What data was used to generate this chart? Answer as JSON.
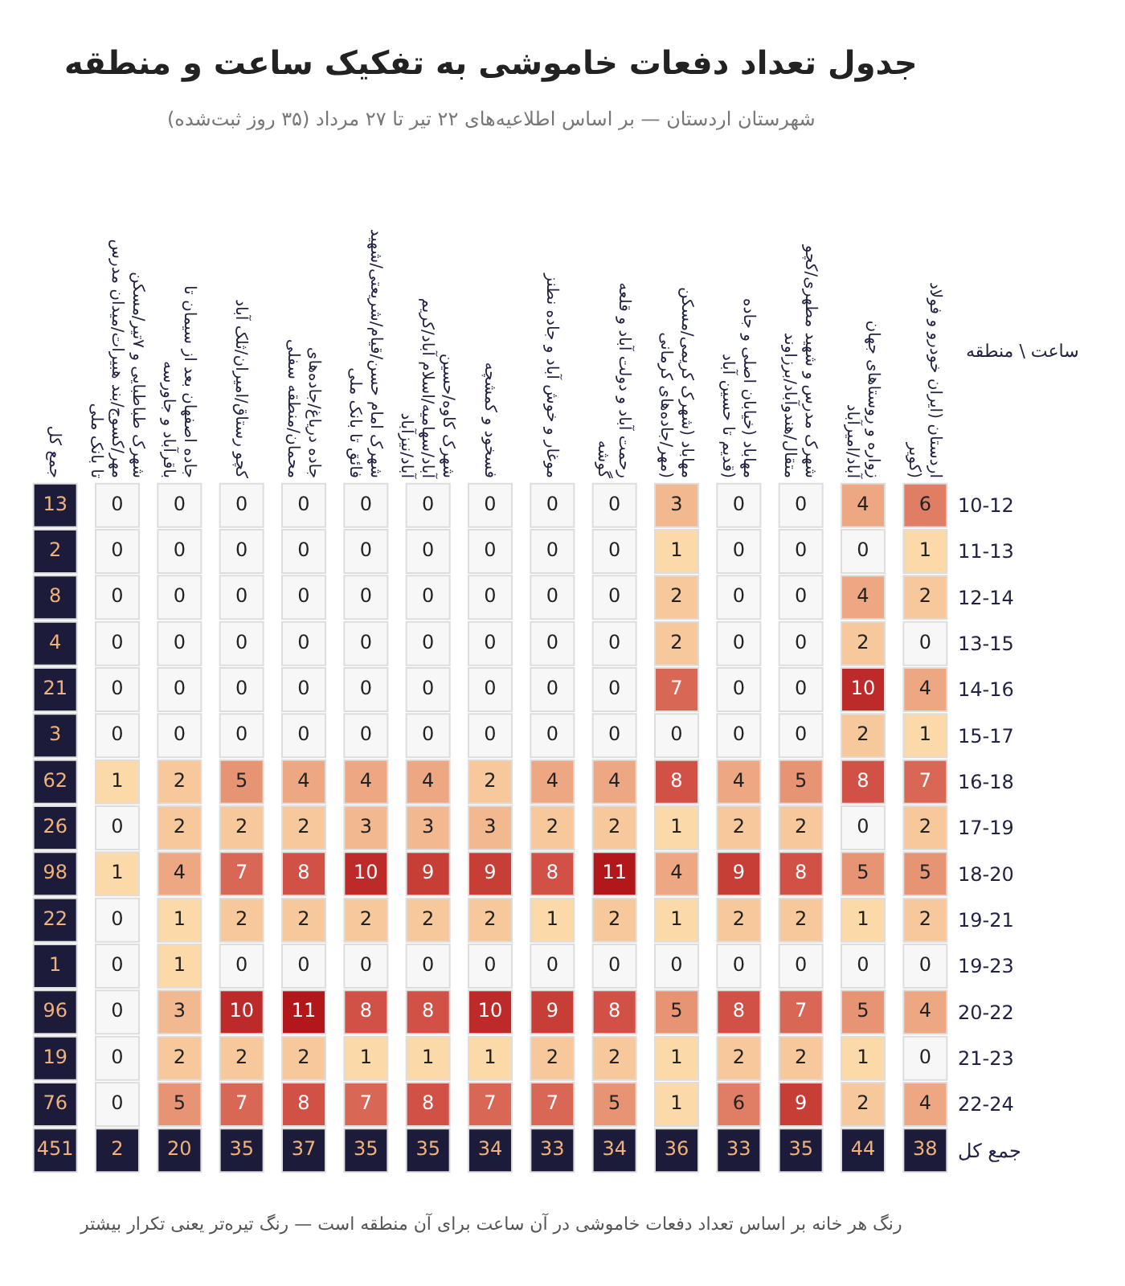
{
  "chart_data": {
    "type": "heatmap",
    "title": "جدول تعداد دفعات خاموشی به تفکیک ساعت و منطقه",
    "subtitle": "شهرستان اردستان — بر اساس اطلاعیه‌های ۲۲ تیر تا ۲۷ مرداد (۳۵ روز ثبت‌شده)",
    "ylabel": "ساعت \\ منطقه",
    "categories": [
      "جمع کل",
      "شهرک طباطبایی و ۷تیر/مسکن مهر/کسوج/بند هبیرات/میدان مدرس تا بانک ملی",
      "جاده اصفهان بعد از سیمان تا باقرآباد و جاورسه",
      "کچو رستاق/امیران/ثلک آباد",
      "جاده دریاغ/جاده‌های محمان/منطقه سفلی",
      "شهرک امام حسن/قیام/شریعتی/شهید فائق تا بانک ملی",
      "شهرک کاوه/حسین آباد/سهامیه/اسلام آباد/کریم آباد/نیزآباد",
      "فسخود و کمشچه",
      "موغار و خوش آباد و جاده نطنز",
      "رحمت آباد و دولت آباد و قلعه گوشه",
      "مهاباد (شهرک کریمی/مسکن مهر/جاده‌های کرمانی)",
      "مهاباد (خیابان اصلی و جاده قدیم تا حسین آباد)",
      "شهرک مدرس و شهید مطهری/کچو متقال/هندوآباد/برزاوند",
      "زواره و روستاهای جهان آباد/امیرآباد",
      "اردستان (ایران خودرو و فولاد کویر)"
    ],
    "y_categories": [
      "10-12",
      "11-13",
      "12-14",
      "13-15",
      "14-16",
      "15-17",
      "16-18",
      "17-19",
      "18-20",
      "19-21",
      "19-23",
      "20-22",
      "21-23",
      "22-24",
      "جمع کل"
    ],
    "cells": [
      [
        13,
        0,
        0,
        0,
        0,
        0,
        0,
        0,
        0,
        0,
        3,
        0,
        0,
        4,
        6
      ],
      [
        2,
        0,
        0,
        0,
        0,
        0,
        0,
        0,
        0,
        0,
        1,
        0,
        0,
        0,
        1
      ],
      [
        8,
        0,
        0,
        0,
        0,
        0,
        0,
        0,
        0,
        0,
        2,
        0,
        0,
        4,
        2
      ],
      [
        4,
        0,
        0,
        0,
        0,
        0,
        0,
        0,
        0,
        0,
        2,
        0,
        0,
        2,
        0
      ],
      [
        21,
        0,
        0,
        0,
        0,
        0,
        0,
        0,
        0,
        0,
        7,
        0,
        0,
        10,
        4
      ],
      [
        3,
        0,
        0,
        0,
        0,
        0,
        0,
        0,
        0,
        0,
        0,
        0,
        0,
        2,
        1
      ],
      [
        62,
        1,
        2,
        5,
        4,
        4,
        4,
        2,
        4,
        4,
        8,
        4,
        5,
        8,
        7
      ],
      [
        26,
        0,
        2,
        2,
        2,
        3,
        3,
        3,
        2,
        2,
        1,
        2,
        2,
        0,
        2
      ],
      [
        98,
        1,
        4,
        7,
        8,
        10,
        9,
        9,
        8,
        11,
        4,
        9,
        8,
        5,
        5
      ],
      [
        22,
        0,
        1,
        2,
        2,
        2,
        2,
        2,
        1,
        2,
        1,
        2,
        2,
        1,
        2
      ],
      [
        1,
        0,
        1,
        0,
        0,
        0,
        0,
        0,
        0,
        0,
        0,
        0,
        0,
        0,
        0
      ],
      [
        96,
        0,
        3,
        10,
        11,
        8,
        8,
        10,
        9,
        8,
        5,
        8,
        7,
        5,
        4
      ],
      [
        19,
        0,
        2,
        2,
        2,
        1,
        1,
        1,
        2,
        2,
        1,
        2,
        2,
        1,
        0
      ],
      [
        76,
        0,
        5,
        7,
        8,
        7,
        8,
        7,
        7,
        5,
        1,
        6,
        9,
        2,
        4
      ],
      [
        451,
        2,
        20,
        35,
        37,
        35,
        35,
        34,
        33,
        34,
        36,
        33,
        35,
        44,
        38
      ]
    ],
    "data_labels": true,
    "annotations": [
      "رنگ هر خانه بر اساس تعداد دفعات خاموشی در آن ساعت برای آن منطقه است — رنگ تیره‌تر یعنی تکرار بیشتر"
    ]
  }
}
